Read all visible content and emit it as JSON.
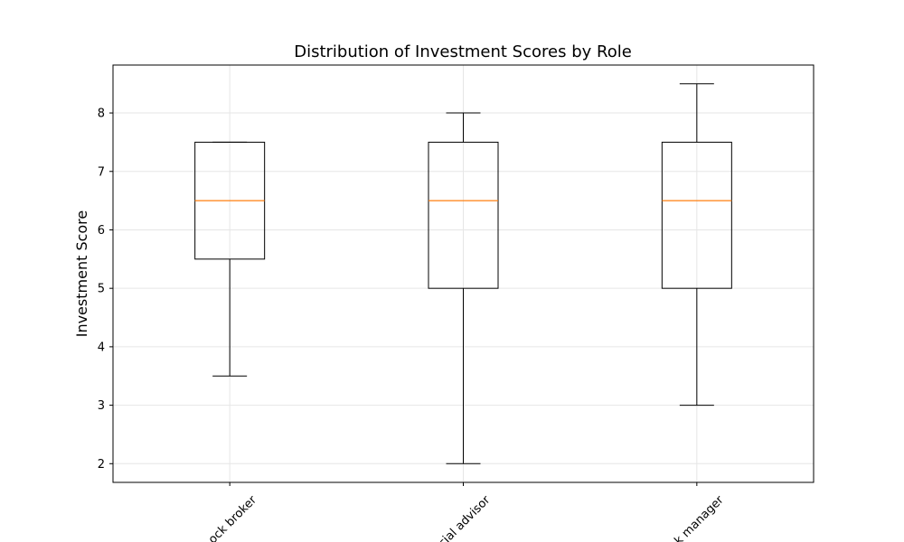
{
  "chart_data": {
    "type": "box",
    "title": "Distribution of Investment Scores by Role",
    "xlabel": "",
    "ylabel": "Investment Score",
    "categories": [
      "stock broker",
      "financial advisor",
      "risk manager"
    ],
    "visible_tick_labels": [
      "ock broker",
      "cial advisor",
      "k manager"
    ],
    "boxes": [
      {
        "whisker_low": 3.5,
        "q1": 5.5,
        "median": 6.5,
        "q3": 7.5,
        "whisker_high": 7.5
      },
      {
        "whisker_low": 2.0,
        "q1": 5.0,
        "median": 6.5,
        "q3": 7.5,
        "whisker_high": 8.0
      },
      {
        "whisker_low": 3.0,
        "q1": 5.0,
        "median": 6.5,
        "q3": 7.5,
        "whisker_high": 8.5
      }
    ],
    "ylim": [
      1.68,
      8.82
    ],
    "yticks": [
      2,
      3,
      4,
      5,
      6,
      7,
      8
    ],
    "ytick_labels": [
      "2",
      "3",
      "4",
      "5",
      "6",
      "7",
      "8"
    ],
    "grid": true,
    "colors": {
      "box": "#000000",
      "median": "#ff7f0e",
      "grid": "#e6e6e6"
    }
  }
}
